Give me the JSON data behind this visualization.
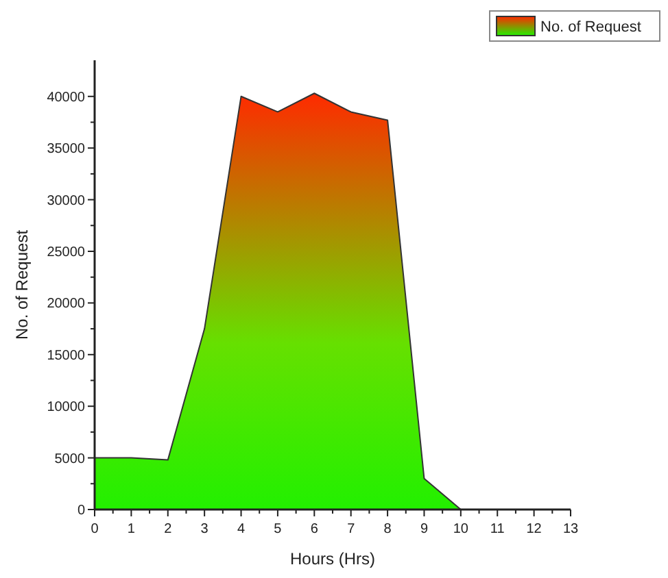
{
  "chart_data": {
    "type": "area",
    "xlabel": "Hours (Hrs)",
    "ylabel": "No. of Request",
    "x": [
      0,
      1,
      2,
      3,
      4,
      5,
      6,
      7,
      8,
      9,
      10
    ],
    "series": [
      {
        "name": "No. of Request",
        "color": "#ff2a00",
        "values": [
          5000,
          5000,
          4800,
          17500,
          40000,
          38500,
          40300,
          38500,
          37700,
          3000,
          0
        ]
      }
    ],
    "xlim": [
      0,
      13
    ],
    "xticks": [
      0,
      1,
      2,
      3,
      4,
      5,
      6,
      7,
      8,
      9,
      10,
      11,
      12,
      13
    ],
    "ylim": [
      0,
      43500
    ],
    "yticks": [
      0,
      5000,
      10000,
      15000,
      20000,
      25000,
      30000,
      35000,
      40000
    ],
    "legend": "top right",
    "grid": false
  }
}
